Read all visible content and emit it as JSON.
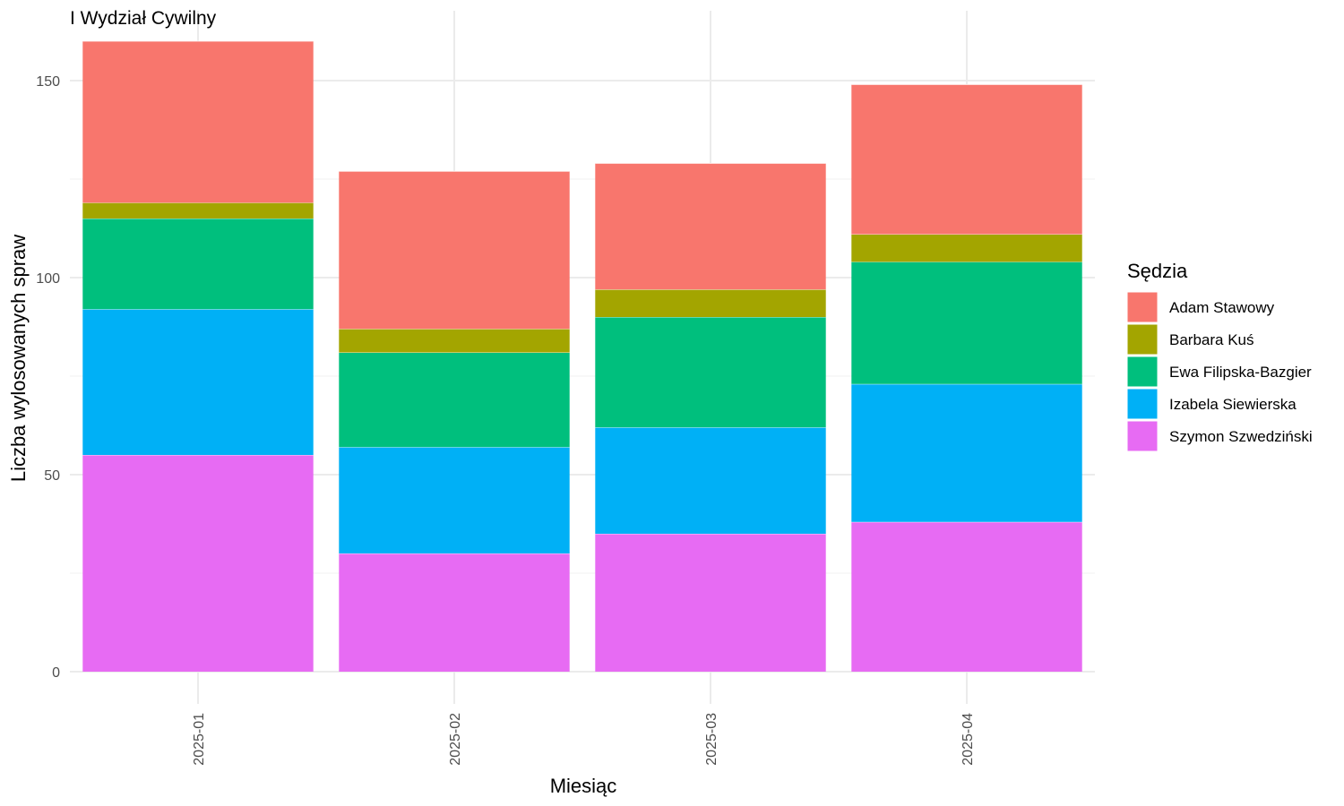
{
  "chart_data": {
    "type": "bar",
    "stacked": true,
    "title": "I Wydział Cywilny",
    "xlabel": "Miesiąc",
    "ylabel": "Liczba wylosowanych spraw",
    "categories": [
      "2025-01",
      "2025-02",
      "2025-03",
      "2025-04"
    ],
    "ylim": [
      0,
      160
    ],
    "yticks": [
      0,
      50,
      100,
      150
    ],
    "grid": true,
    "legend": {
      "title": "Sędzia",
      "position": "right"
    },
    "series": [
      {
        "name": "Szymon Szwedziński",
        "color": "#E76BF3",
        "values": [
          55,
          30,
          35,
          38
        ]
      },
      {
        "name": "Izabela Siewierska",
        "color": "#00B0F6",
        "values": [
          37,
          27,
          27,
          35
        ]
      },
      {
        "name": "Ewa Filipska-Bazgier",
        "color": "#00BF7D",
        "values": [
          23,
          24,
          28,
          31
        ]
      },
      {
        "name": "Barbara Kuś",
        "color": "#A3A500",
        "values": [
          4,
          6,
          7,
          7
        ]
      },
      {
        "name": "Adam Stawowy",
        "color": "#F8766D",
        "values": [
          41,
          40,
          32,
          38
        ]
      }
    ],
    "legend_order": [
      "Adam Stawowy",
      "Barbara Kuś",
      "Ewa Filipska-Bazgier",
      "Izabela Siewierska",
      "Szymon Szwedziński"
    ]
  }
}
